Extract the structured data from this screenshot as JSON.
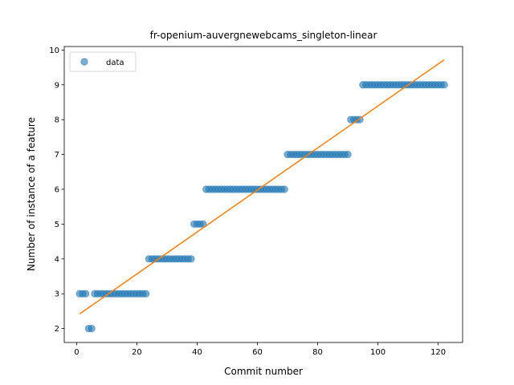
{
  "chart_data": {
    "type": "scatter",
    "title": "fr-openium-auvergnewebcams_singleton-linear",
    "xlabel": "Commit number",
    "ylabel": "Number of instance of a feature",
    "xlim": [
      -4.1,
      128.1
    ],
    "ylim": [
      1.6,
      10.1
    ],
    "xticks": [
      0,
      20,
      40,
      60,
      80,
      100,
      120
    ],
    "yticks": [
      2,
      3,
      4,
      5,
      6,
      7,
      8,
      9,
      10
    ],
    "legend": {
      "position": "top-left",
      "entries": [
        "data"
      ]
    },
    "grid": false,
    "series": [
      {
        "name": "data",
        "kind": "scatter",
        "color": "#1f77b4",
        "alpha": 0.6,
        "x": [
          1,
          2,
          3,
          4,
          5,
          6,
          7,
          8,
          9,
          10,
          11,
          12,
          13,
          14,
          15,
          16,
          17,
          18,
          19,
          20,
          21,
          22,
          23,
          24,
          25,
          26,
          27,
          28,
          29,
          30,
          31,
          32,
          33,
          34,
          35,
          36,
          37,
          38,
          39,
          40,
          41,
          42,
          43,
          44,
          45,
          46,
          47,
          48,
          49,
          50,
          51,
          52,
          53,
          54,
          55,
          56,
          57,
          58,
          59,
          60,
          61,
          62,
          63,
          64,
          65,
          66,
          67,
          68,
          69,
          70,
          71,
          72,
          73,
          74,
          75,
          76,
          77,
          78,
          79,
          80,
          81,
          82,
          83,
          84,
          85,
          86,
          87,
          88,
          89,
          90,
          91,
          92,
          93,
          94,
          95,
          96,
          97,
          98,
          99,
          100,
          101,
          102,
          103,
          104,
          105,
          106,
          107,
          108,
          109,
          110,
          111,
          112,
          113,
          114,
          115,
          116,
          117,
          118,
          119,
          120,
          121,
          122
        ],
        "y": [
          3,
          3,
          3,
          2,
          2,
          3,
          3,
          3,
          3,
          3,
          3,
          3,
          3,
          3,
          3,
          3,
          3,
          3,
          3,
          3,
          3,
          3,
          3,
          4,
          4,
          4,
          4,
          4,
          4,
          4,
          4,
          4,
          4,
          4,
          4,
          4,
          4,
          4,
          5,
          5,
          5,
          5,
          6,
          6,
          6,
          6,
          6,
          6,
          6,
          6,
          6,
          6,
          6,
          6,
          6,
          6,
          6,
          6,
          6,
          6,
          6,
          6,
          6,
          6,
          6,
          6,
          6,
          6,
          6,
          7,
          7,
          7,
          7,
          7,
          7,
          7,
          7,
          7,
          7,
          7,
          7,
          7,
          7,
          7,
          7,
          7,
          7,
          7,
          7,
          7,
          8,
          8,
          8,
          8,
          9,
          9,
          9,
          9,
          9,
          9,
          9,
          9,
          9,
          9,
          9,
          9,
          9,
          9,
          9,
          9,
          9,
          9,
          9,
          9,
          9,
          9,
          9,
          9,
          9,
          9,
          9,
          9
        ]
      },
      {
        "name": "",
        "kind": "line",
        "color": "#ff7f0e",
        "x": [
          1,
          122
        ],
        "y": [
          2.42,
          9.72
        ]
      }
    ]
  }
}
